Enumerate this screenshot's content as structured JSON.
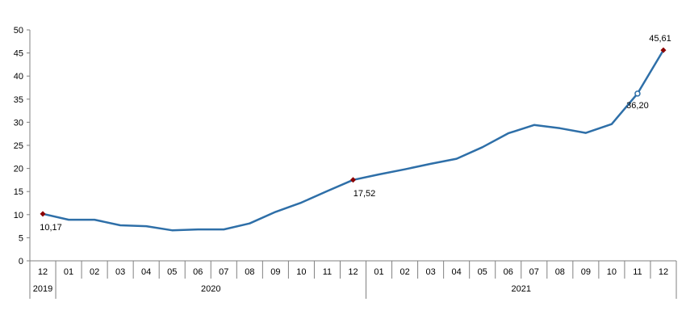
{
  "chart_data": {
    "type": "line",
    "x": [
      "12",
      "01",
      "02",
      "03",
      "04",
      "05",
      "06",
      "07",
      "08",
      "09",
      "10",
      "11",
      "12",
      "01",
      "02",
      "03",
      "04",
      "05",
      "06",
      "07",
      "08",
      "09",
      "10",
      "11",
      "12"
    ],
    "year_groups": [
      {
        "label": "2019",
        "start": 0,
        "end": 0
      },
      {
        "label": "2020",
        "start": 1,
        "end": 12
      },
      {
        "label": "2021",
        "start": 13,
        "end": 24
      }
    ],
    "series": [
      {
        "values": [
          10.17,
          8.9,
          8.9,
          7.7,
          7.5,
          6.6,
          6.8,
          6.8,
          8.1,
          10.6,
          12.6,
          15.1,
          17.52,
          18.7,
          19.8,
          21.0,
          22.1,
          24.6,
          27.6,
          29.4,
          28.7,
          27.7,
          29.6,
          36.2,
          45.61
        ]
      }
    ],
    "labeled_points": [
      {
        "index": 0,
        "label": "10,17",
        "marker": "diamond"
      },
      {
        "index": 12,
        "label": "17,52",
        "marker": "diamond"
      },
      {
        "index": 23,
        "label": "36,20",
        "marker": "circle"
      },
      {
        "index": 24,
        "label": "45,61",
        "marker": "diamond"
      }
    ],
    "y_ticks": [
      "0",
      "5",
      "10",
      "15",
      "20",
      "25",
      "30",
      "35",
      "40",
      "45",
      "50"
    ],
    "ylim": [
      0,
      50
    ],
    "grid": false,
    "colors": {
      "line": "#2e6fa8",
      "diamond": "#8b0000",
      "circle": "#2e6fa8",
      "axis": "#808080"
    }
  }
}
